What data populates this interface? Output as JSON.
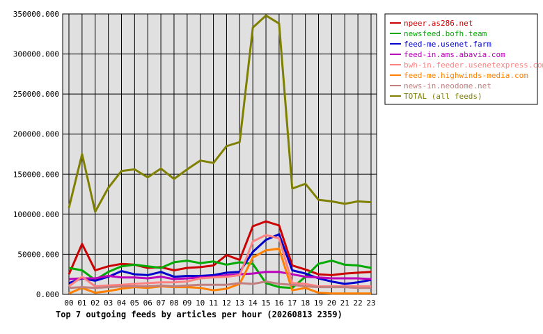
{
  "chart_data": {
    "type": "line",
    "title": "Top 7 outgoing feeds by articles per hour (20260813 2359)",
    "xlabel": "",
    "ylabel": "",
    "categories": [
      "00",
      "01",
      "02",
      "03",
      "04",
      "05",
      "06",
      "07",
      "08",
      "09",
      "10",
      "11",
      "12",
      "13",
      "14",
      "15",
      "16",
      "17",
      "18",
      "19",
      "20",
      "21",
      "22",
      "23"
    ],
    "ylim": [
      0,
      350000
    ],
    "yticks": [
      "0.000",
      "50000.000",
      "100000.000",
      "150000.000",
      "200000.000",
      "250000.000",
      "300000.000",
      "350000.000"
    ],
    "grid": true,
    "legend_position": "right",
    "series": [
      {
        "name": "npeer.as286.net",
        "color": "#cc0000",
        "values": [
          25000,
          63000,
          30000,
          35000,
          38000,
          37000,
          33000,
          34000,
          30000,
          33000,
          34000,
          36000,
          49000,
          43000,
          85000,
          91000,
          86000,
          36000,
          31000,
          25000,
          24000,
          26000,
          27000,
          28000
        ]
      },
      {
        "name": "newsfeed.bofh.team",
        "color": "#00aa00",
        "values": [
          33000,
          30000,
          18000,
          28000,
          35000,
          37000,
          35000,
          33000,
          40000,
          42000,
          39000,
          41000,
          37000,
          40000,
          38000,
          14000,
          9000,
          8000,
          22000,
          38000,
          42000,
          37000,
          36000,
          33000
        ]
      },
      {
        "name": "feed-me.usenet.farm",
        "color": "#0000cc",
        "values": [
          14000,
          20000,
          17000,
          22000,
          29000,
          25000,
          24000,
          28000,
          22000,
          23000,
          23000,
          24000,
          27000,
          28000,
          53000,
          68000,
          75000,
          30000,
          26000,
          20000,
          16000,
          13000,
          15000,
          18000
        ]
      },
      {
        "name": "feed-in.ams.abavia.com",
        "color": "#bb00bb",
        "values": [
          19000,
          20000,
          20000,
          23000,
          21000,
          21000,
          20000,
          22000,
          19000,
          20000,
          21000,
          22000,
          24000,
          25000,
          26000,
          28000,
          28000,
          25000,
          22000,
          21000,
          20000,
          20000,
          20000,
          19000
        ]
      },
      {
        "name": "bwh-in.feeder.usenetexpress.com",
        "color": "#ff8080",
        "values": [
          10000,
          22000,
          10000,
          11000,
          12000,
          13000,
          14000,
          15000,
          15000,
          16000,
          20000,
          21000,
          22000,
          24000,
          66000,
          74000,
          70000,
          14000,
          13000,
          10000,
          10000,
          10000,
          10000,
          10000
        ]
      },
      {
        "name": "feed-me.highwinds-media.com",
        "color": "#ff8000",
        "values": [
          1000,
          8000,
          2000,
          4000,
          7000,
          9000,
          8000,
          10000,
          9000,
          9000,
          8000,
          5000,
          7000,
          13000,
          46000,
          55000,
          57000,
          5000,
          8000,
          2000,
          1000,
          1000,
          1000,
          1000
        ]
      },
      {
        "name": "news-in.neodome.net",
        "color": "#c08080",
        "values": [
          8000,
          9000,
          8000,
          9000,
          10000,
          10000,
          10000,
          11000,
          10000,
          11000,
          12000,
          12000,
          12000,
          14000,
          13000,
          16000,
          13000,
          12000,
          10000,
          9000,
          9000,
          9000,
          8000,
          8000
        ]
      },
      {
        "name": "TOTAL (all feeds)",
        "color": "#808000",
        "values": [
          108000,
          175000,
          103000,
          133000,
          154000,
          156000,
          146000,
          157000,
          144000,
          156000,
          167000,
          164000,
          185000,
          190000,
          333000,
          348000,
          338000,
          132000,
          138000,
          118000,
          116000,
          113000,
          116000,
          115000
        ]
      }
    ]
  }
}
